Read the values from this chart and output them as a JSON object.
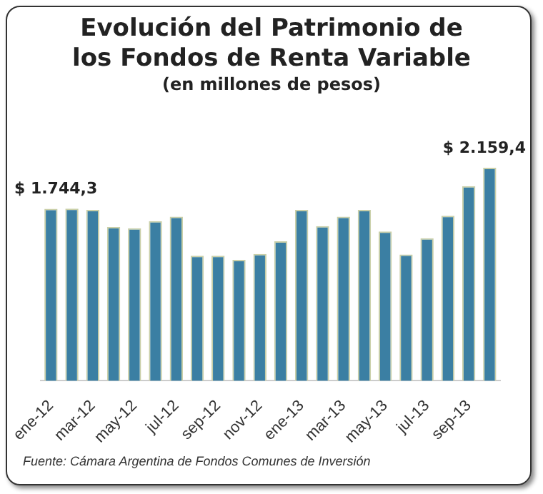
{
  "chart_data": {
    "type": "bar",
    "title": "Evolución del Patrimonio de los Fondos de Renta Variable",
    "subtitle": "(en millones de pesos)",
    "categories": [
      "ene-12",
      null,
      "mar-12",
      null,
      "may-12",
      null,
      "jul-12",
      null,
      "sep-12",
      null,
      "nov-12",
      null,
      "ene-13",
      null,
      "mar-13",
      null,
      "may-13",
      null,
      "jul-13",
      null,
      "sep-13",
      null
    ],
    "values": [
      1744.3,
      1746,
      1733,
      1560,
      1546,
      1619,
      1664,
      1268,
      1268,
      1227,
      1286,
      1414,
      1733,
      1569,
      1664,
      1733,
      1514,
      1281,
      1446,
      1674,
      1974,
      2159.4
    ],
    "value_labels": [
      "$ 1.744,3",
      null,
      null,
      null,
      null,
      null,
      null,
      null,
      null,
      null,
      null,
      null,
      null,
      null,
      null,
      null,
      null,
      null,
      null,
      null,
      null,
      "$ 2.159,4"
    ],
    "color": "#3b7fa3",
    "tick_labels": "x",
    "grid": false,
    "legend": false,
    "annotations": [
      "Fuente:  Cámara Argentina de Fondos Comunes de Inversión"
    ]
  }
}
